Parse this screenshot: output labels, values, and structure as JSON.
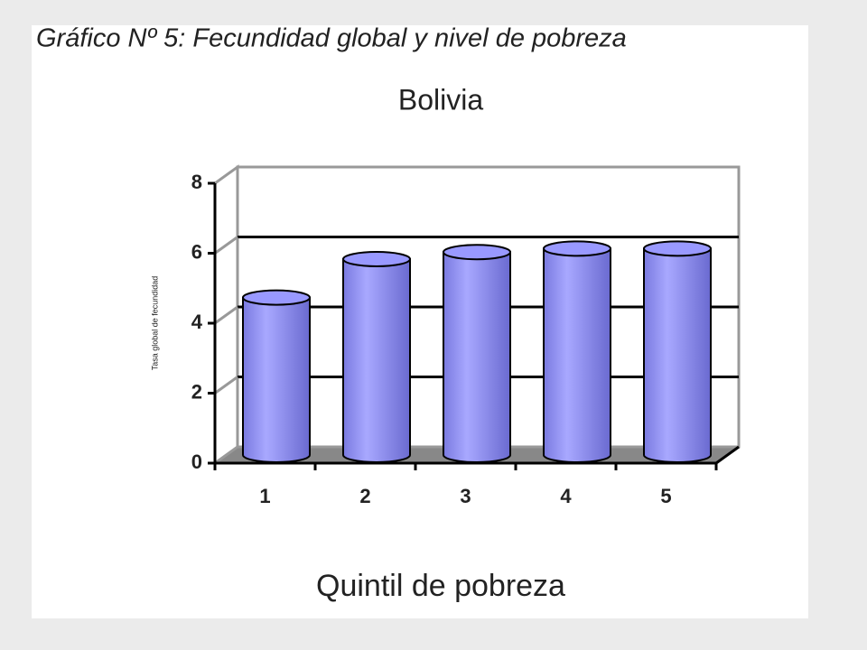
{
  "chart_data": {
    "type": "bar",
    "title": "Gráfico Nº 5: Fecundidad global y nivel de pobreza",
    "subtitle": "Bolivia",
    "x_label": "Quintil de pobreza",
    "y_label": "Tasa global de fecundidad",
    "categories": [
      "1",
      "2",
      "3",
      "4",
      "5"
    ],
    "values": [
      4.5,
      5.6,
      5.8,
      5.9,
      5.9
    ],
    "color": "#9999ff",
    "ylim": [
      0,
      8
    ],
    "yticks": [
      0,
      2,
      4,
      6,
      8
    ],
    "grid": true
  }
}
